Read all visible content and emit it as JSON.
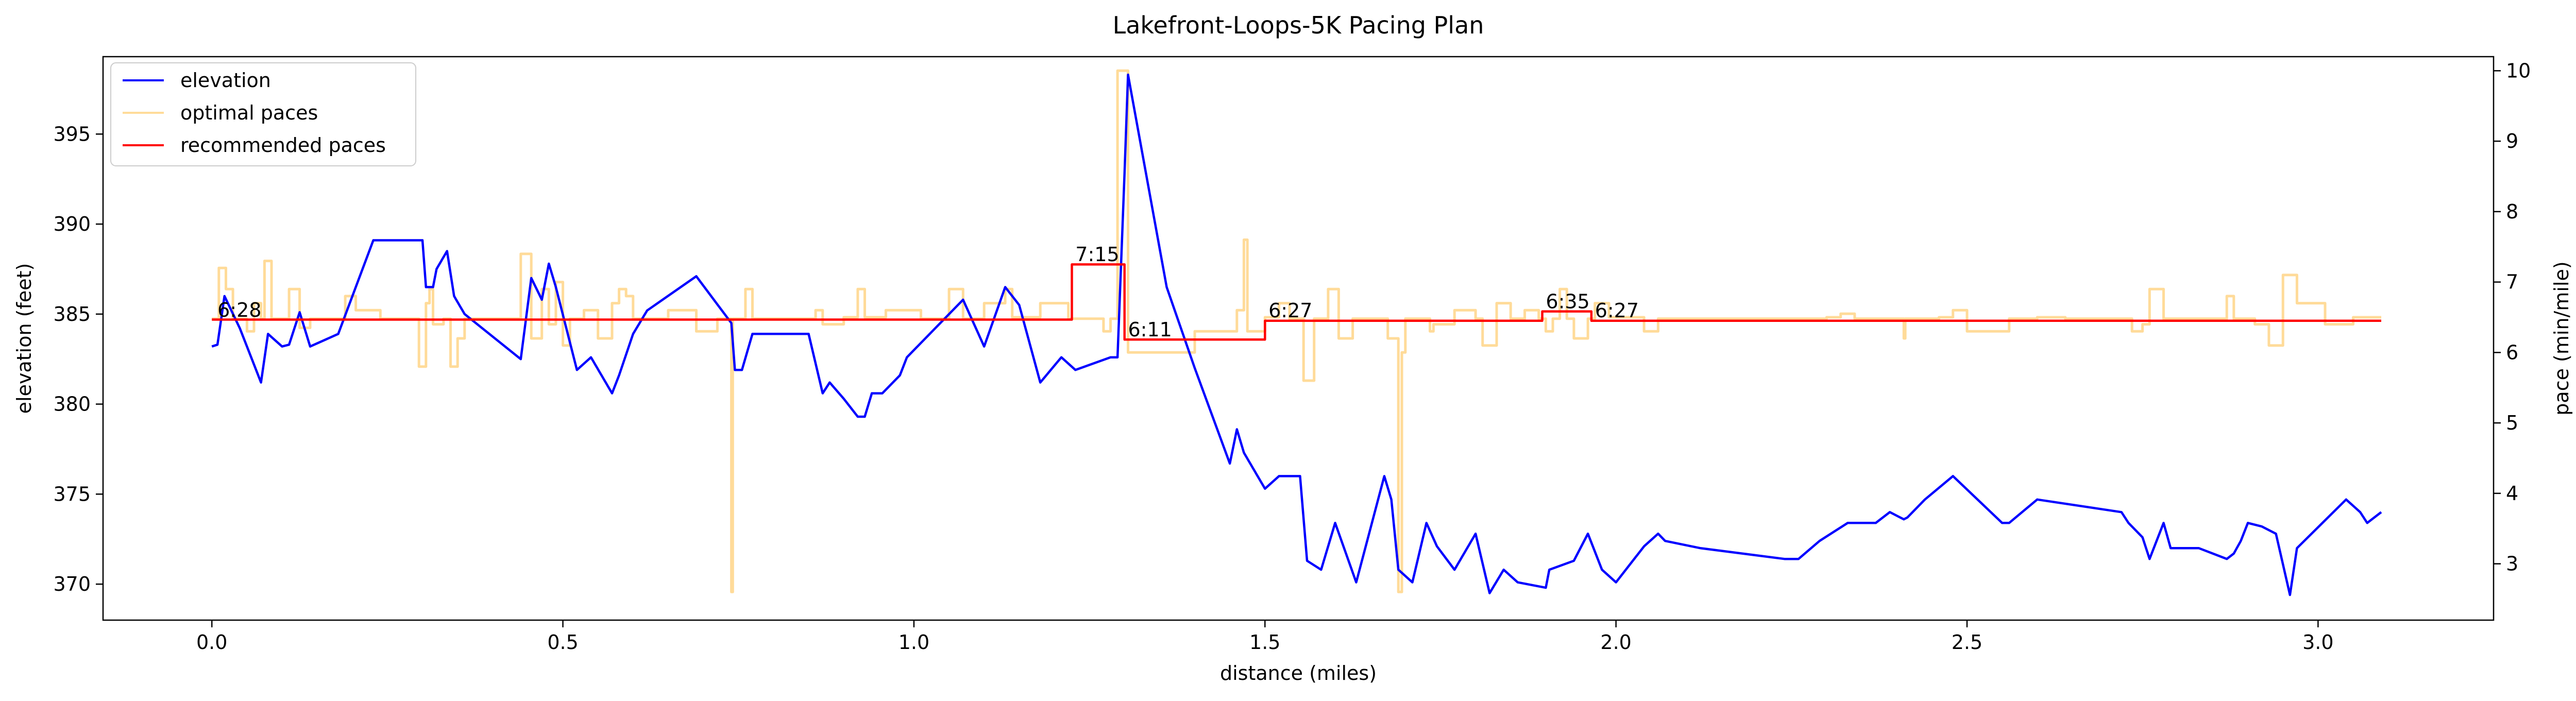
{
  "chart_data": {
    "type": "line",
    "title": "Lakefront-Loops-5K Pacing Plan",
    "xlabel": "distance (miles)",
    "ylabel_left": "elevation (feet)",
    "ylabel_right": "pace (min/mile)",
    "xlim": [
      -0.155,
      3.25
    ],
    "ylim_left": [
      368.0,
      399.3
    ],
    "ylim_right": [
      2.2,
      10.2
    ],
    "x_ticks": [
      {
        "v": 0.0,
        "label": "0.0"
      },
      {
        "v": 0.5,
        "label": "0.5"
      },
      {
        "v": 1.0,
        "label": "1.0"
      },
      {
        "v": 1.5,
        "label": "1.5"
      },
      {
        "v": 2.0,
        "label": "2.0"
      },
      {
        "v": 2.5,
        "label": "2.5"
      },
      {
        "v": 3.0,
        "label": "3.0"
      }
    ],
    "y_ticks_left": [
      {
        "v": 370,
        "label": "370"
      },
      {
        "v": 375,
        "label": "375"
      },
      {
        "v": 380,
        "label": "380"
      },
      {
        "v": 385,
        "label": "385"
      },
      {
        "v": 390,
        "label": "390"
      },
      {
        "v": 395,
        "label": "395"
      }
    ],
    "y_ticks_right": [
      {
        "v": 3,
        "label": "3"
      },
      {
        "v": 4,
        "label": "4"
      },
      {
        "v": 5,
        "label": "5"
      },
      {
        "v": 6,
        "label": "6"
      },
      {
        "v": 7,
        "label": "7"
      },
      {
        "v": 8,
        "label": "8"
      },
      {
        "v": 9,
        "label": "9"
      },
      {
        "v": 10,
        "label": "10"
      }
    ],
    "grid": false,
    "legend_position": "top-left",
    "series": [
      {
        "name": "elevation",
        "axis": "left",
        "color": "#0000ff",
        "points": [
          [
            0.0,
            383.2
          ],
          [
            0.008,
            383.3
          ],
          [
            0.018,
            386.0
          ],
          [
            0.04,
            384.2
          ],
          [
            0.07,
            381.2
          ],
          [
            0.08,
            383.9
          ],
          [
            0.1,
            383.2
          ],
          [
            0.11,
            383.3
          ],
          [
            0.125,
            385.1
          ],
          [
            0.14,
            383.2
          ],
          [
            0.18,
            383.9
          ],
          [
            0.23,
            389.1
          ],
          [
            0.3,
            389.1
          ],
          [
            0.305,
            386.5
          ],
          [
            0.315,
            386.5
          ],
          [
            0.32,
            387.5
          ],
          [
            0.335,
            388.5
          ],
          [
            0.345,
            386.0
          ],
          [
            0.36,
            385.0
          ],
          [
            0.44,
            382.5
          ],
          [
            0.455,
            387.0
          ],
          [
            0.47,
            385.8
          ],
          [
            0.48,
            387.8
          ],
          [
            0.49,
            386.5
          ],
          [
            0.52,
            381.9
          ],
          [
            0.54,
            382.6
          ],
          [
            0.57,
            380.6
          ],
          [
            0.58,
            381.6
          ],
          [
            0.6,
            383.9
          ],
          [
            0.62,
            385.2
          ],
          [
            0.69,
            387.1
          ],
          [
            0.74,
            384.5
          ],
          [
            0.745,
            381.9
          ],
          [
            0.755,
            381.9
          ],
          [
            0.77,
            383.9
          ],
          [
            0.85,
            383.9
          ],
          [
            0.87,
            380.6
          ],
          [
            0.88,
            381.2
          ],
          [
            0.9,
            380.3
          ],
          [
            0.92,
            379.3
          ],
          [
            0.93,
            379.3
          ],
          [
            0.94,
            380.6
          ],
          [
            0.955,
            380.6
          ],
          [
            0.98,
            381.6
          ],
          [
            0.99,
            382.6
          ],
          [
            1.07,
            385.8
          ],
          [
            1.1,
            383.2
          ],
          [
            1.13,
            386.5
          ],
          [
            1.15,
            385.5
          ],
          [
            1.18,
            381.2
          ],
          [
            1.21,
            382.6
          ],
          [
            1.23,
            381.9
          ],
          [
            1.28,
            382.6
          ],
          [
            1.29,
            382.6
          ],
          [
            1.3,
            392.8
          ],
          [
            1.305,
            398.3
          ],
          [
            1.36,
            386.5
          ],
          [
            1.4,
            382.0
          ],
          [
            1.45,
            376.7
          ],
          [
            1.46,
            378.6
          ],
          [
            1.47,
            377.3
          ],
          [
            1.5,
            375.3
          ],
          [
            1.52,
            376.0
          ],
          [
            1.55,
            376.0
          ],
          [
            1.56,
            371.3
          ],
          [
            1.58,
            370.8
          ],
          [
            1.6,
            373.4
          ],
          [
            1.63,
            370.1
          ],
          [
            1.67,
            376.0
          ],
          [
            1.68,
            374.7
          ],
          [
            1.69,
            370.8
          ],
          [
            1.71,
            370.1
          ],
          [
            1.73,
            373.4
          ],
          [
            1.745,
            372.1
          ],
          [
            1.77,
            370.8
          ],
          [
            1.8,
            372.8
          ],
          [
            1.82,
            369.5
          ],
          [
            1.84,
            370.8
          ],
          [
            1.86,
            370.1
          ],
          [
            1.9,
            369.8
          ],
          [
            1.905,
            370.8
          ],
          [
            1.94,
            371.3
          ],
          [
            1.96,
            372.8
          ],
          [
            1.98,
            370.8
          ],
          [
            2.0,
            370.1
          ],
          [
            2.04,
            372.1
          ],
          [
            2.06,
            372.8
          ],
          [
            2.07,
            372.4
          ],
          [
            2.12,
            372.0
          ],
          [
            2.24,
            371.4
          ],
          [
            2.26,
            371.4
          ],
          [
            2.29,
            372.4
          ],
          [
            2.33,
            373.4
          ],
          [
            2.37,
            373.4
          ],
          [
            2.39,
            374.0
          ],
          [
            2.41,
            373.6
          ],
          [
            2.415,
            373.7
          ],
          [
            2.44,
            374.7
          ],
          [
            2.48,
            376.0
          ],
          [
            2.55,
            373.4
          ],
          [
            2.56,
            373.4
          ],
          [
            2.6,
            374.7
          ],
          [
            2.72,
            374.0
          ],
          [
            2.73,
            373.4
          ],
          [
            2.75,
            372.6
          ],
          [
            2.76,
            371.4
          ],
          [
            2.78,
            373.4
          ],
          [
            2.79,
            372.0
          ],
          [
            2.83,
            372.0
          ],
          [
            2.87,
            371.4
          ],
          [
            2.88,
            371.7
          ],
          [
            2.89,
            372.4
          ],
          [
            2.9,
            373.4
          ],
          [
            2.92,
            373.2
          ],
          [
            2.94,
            372.8
          ],
          [
            2.96,
            369.4
          ],
          [
            2.97,
            372.0
          ],
          [
            3.04,
            374.7
          ],
          [
            3.06,
            374.0
          ],
          [
            3.07,
            373.4
          ],
          [
            3.09,
            374.0
          ]
        ]
      },
      {
        "name": "optimal paces",
        "axis": "right",
        "color": "#ffa500",
        "opacity": 0.4,
        "step": true,
        "points": [
          [
            0.0,
            6.48
          ],
          [
            0.01,
            7.2
          ],
          [
            0.02,
            6.9
          ],
          [
            0.03,
            6.48
          ],
          [
            0.05,
            6.3
          ],
          [
            0.06,
            6.7
          ],
          [
            0.07,
            6.48
          ],
          [
            0.075,
            7.3
          ],
          [
            0.085,
            6.48
          ],
          [
            0.1,
            6.48
          ],
          [
            0.11,
            6.9
          ],
          [
            0.125,
            6.35
          ],
          [
            0.14,
            6.48
          ],
          [
            0.17,
            6.48
          ],
          [
            0.18,
            6.48
          ],
          [
            0.19,
            6.8
          ],
          [
            0.205,
            6.6
          ],
          [
            0.24,
            6.48
          ],
          [
            0.26,
            6.48
          ],
          [
            0.29,
            6.48
          ],
          [
            0.295,
            5.8
          ],
          [
            0.305,
            6.7
          ],
          [
            0.31,
            6.9
          ],
          [
            0.315,
            6.4
          ],
          [
            0.33,
            6.48
          ],
          [
            0.34,
            5.8
          ],
          [
            0.35,
            6.2
          ],
          [
            0.36,
            6.48
          ],
          [
            0.44,
            7.4
          ],
          [
            0.455,
            6.2
          ],
          [
            0.47,
            6.9
          ],
          [
            0.48,
            6.4
          ],
          [
            0.49,
            7.0
          ],
          [
            0.5,
            6.1
          ],
          [
            0.51,
            6.48
          ],
          [
            0.53,
            6.6
          ],
          [
            0.55,
            6.2
          ],
          [
            0.57,
            6.7
          ],
          [
            0.58,
            6.9
          ],
          [
            0.59,
            6.8
          ],
          [
            0.6,
            6.48
          ],
          [
            0.64,
            6.48
          ],
          [
            0.65,
            6.6
          ],
          [
            0.69,
            6.3
          ],
          [
            0.72,
            6.48
          ],
          [
            0.74,
            2.6
          ],
          [
            0.742,
            6.48
          ],
          [
            0.76,
            6.9
          ],
          [
            0.77,
            6.48
          ],
          [
            0.84,
            6.48
          ],
          [
            0.86,
            6.6
          ],
          [
            0.87,
            6.4
          ],
          [
            0.9,
            6.5
          ],
          [
            0.92,
            6.9
          ],
          [
            0.93,
            6.5
          ],
          [
            0.96,
            6.6
          ],
          [
            1.01,
            6.48
          ],
          [
            1.05,
            6.9
          ],
          [
            1.07,
            6.48
          ],
          [
            1.1,
            6.7
          ],
          [
            1.13,
            6.9
          ],
          [
            1.14,
            6.5
          ],
          [
            1.18,
            6.7
          ],
          [
            1.22,
            6.48
          ],
          [
            1.27,
            6.3
          ],
          [
            1.28,
            6.48
          ],
          [
            1.29,
            10.0
          ],
          [
            1.305,
            6.0
          ],
          [
            1.36,
            6.0
          ],
          [
            1.4,
            6.3
          ],
          [
            1.46,
            6.6
          ],
          [
            1.47,
            7.6
          ],
          [
            1.475,
            6.3
          ],
          [
            1.5,
            6.5
          ],
          [
            1.52,
            6.7
          ],
          [
            1.535,
            6.48
          ],
          [
            1.555,
            5.6
          ],
          [
            1.57,
            6.48
          ],
          [
            1.59,
            6.9
          ],
          [
            1.605,
            6.2
          ],
          [
            1.625,
            6.48
          ],
          [
            1.66,
            6.48
          ],
          [
            1.675,
            6.2
          ],
          [
            1.69,
            2.6
          ],
          [
            1.695,
            6.0
          ],
          [
            1.7,
            6.48
          ],
          [
            1.735,
            6.3
          ],
          [
            1.74,
            6.4
          ],
          [
            1.77,
            6.6
          ],
          [
            1.8,
            6.48
          ],
          [
            1.81,
            6.1
          ],
          [
            1.83,
            6.7
          ],
          [
            1.85,
            6.48
          ],
          [
            1.87,
            6.6
          ],
          [
            1.89,
            6.48
          ],
          [
            1.9,
            6.3
          ],
          [
            1.91,
            6.48
          ],
          [
            1.92,
            6.9
          ],
          [
            1.93,
            6.48
          ],
          [
            1.94,
            6.2
          ],
          [
            1.96,
            6.48
          ],
          [
            1.97,
            6.7
          ],
          [
            1.99,
            6.5
          ],
          [
            2.03,
            6.5
          ],
          [
            2.04,
            6.3
          ],
          [
            2.06,
            6.48
          ],
          [
            2.28,
            6.48
          ],
          [
            2.3,
            6.5
          ],
          [
            2.32,
            6.55
          ],
          [
            2.34,
            6.48
          ],
          [
            2.37,
            6.48
          ],
          [
            2.41,
            6.2
          ],
          [
            2.412,
            6.48
          ],
          [
            2.43,
            6.48
          ],
          [
            2.46,
            6.5
          ],
          [
            2.48,
            6.6
          ],
          [
            2.5,
            6.3
          ],
          [
            2.56,
            6.48
          ],
          [
            2.6,
            6.5
          ],
          [
            2.64,
            6.48
          ],
          [
            2.72,
            6.48
          ],
          [
            2.735,
            6.3
          ],
          [
            2.75,
            6.4
          ],
          [
            2.76,
            6.9
          ],
          [
            2.78,
            6.48
          ],
          [
            2.85,
            6.48
          ],
          [
            2.87,
            6.8
          ],
          [
            2.88,
            6.48
          ],
          [
            2.91,
            6.4
          ],
          [
            2.93,
            6.1
          ],
          [
            2.95,
            7.1
          ],
          [
            2.97,
            6.7
          ],
          [
            3.01,
            6.4
          ],
          [
            3.05,
            6.5
          ],
          [
            3.09,
            6.5
          ]
        ]
      },
      {
        "name": "recommended paces",
        "axis": "right",
        "color": "#ff0000",
        "step": true,
        "points": [
          [
            0.0,
            6.467
          ],
          [
            1.225,
            6.467
          ],
          [
            1.225,
            7.25
          ],
          [
            1.3,
            7.25
          ],
          [
            1.3,
            6.183
          ],
          [
            1.5,
            6.183
          ],
          [
            1.5,
            6.45
          ],
          [
            1.895,
            6.45
          ],
          [
            1.895,
            6.583
          ],
          [
            1.965,
            6.583
          ],
          [
            1.965,
            6.45
          ],
          [
            3.09,
            6.45
          ]
        ]
      }
    ],
    "pace_labels": [
      {
        "x": 0.008,
        "y": 6.45,
        "text": "6:28"
      },
      {
        "x": 1.23,
        "y": 7.24,
        "text": "7:15"
      },
      {
        "x": 1.305,
        "y": 6.17,
        "text": "6:11"
      },
      {
        "x": 1.505,
        "y": 6.44,
        "text": "6:27"
      },
      {
        "x": 1.9,
        "y": 6.57,
        "text": "6:35"
      },
      {
        "x": 1.97,
        "y": 6.44,
        "text": "6:27"
      }
    ]
  }
}
